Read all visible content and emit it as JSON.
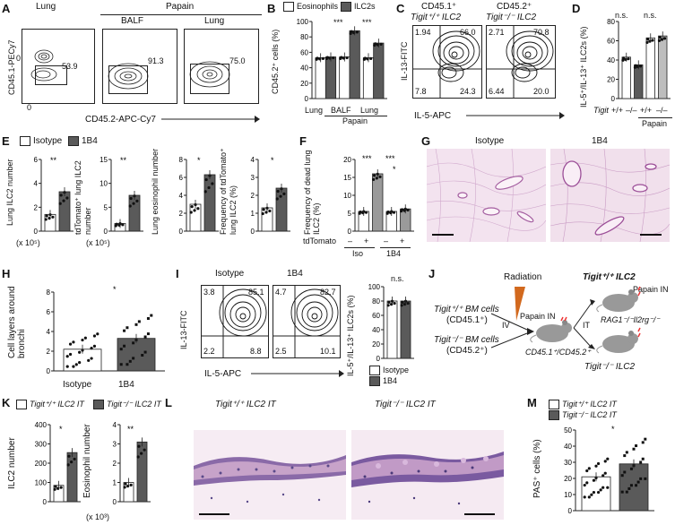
{
  "panels": {
    "A": {
      "letter": "A",
      "lung_label": "Lung",
      "papain_label": "Papain",
      "balf_label": "BALF",
      "lung2_label": "Lung",
      "ylabel": "CD45.1-PECy7",
      "xlabel": "CD45.2-APC-Cy7",
      "zero_y": "0",
      "zero_x": "0",
      "gates": [
        "53.9",
        "91.3",
        "75.0"
      ]
    },
    "B": {
      "letter": "B",
      "legend": [
        "Eosinophils",
        "ILC2s"
      ],
      "ylabel": "CD45.2⁺ cells (%)",
      "yticks": [
        "0",
        "20",
        "40",
        "60",
        "80",
        "100"
      ],
      "stars": [
        "***",
        "***"
      ],
      "xcats": [
        "Lung",
        "BALF",
        "Lung"
      ],
      "papain": "Papain"
    },
    "C": {
      "letter": "C",
      "title1": "CD45.1⁺",
      "title1b": "Tigit⁺/⁺ ILC2",
      "title2": "CD45.2⁺",
      "title2b": "Tigit⁻/⁻ ILC2",
      "ylabel": "IL-13-FITC",
      "xlabel": "IL-5-APC",
      "q1": [
        "1.94",
        "66.0",
        "7.8",
        "24.3"
      ],
      "q2": [
        "2.71",
        "70.8",
        "6.44",
        "20.0"
      ]
    },
    "D": {
      "letter": "D",
      "ylabel": "IL-5⁺/IL-13⁺ ILC2s (%)",
      "yticks": [
        "0",
        "20",
        "40",
        "60",
        "80"
      ],
      "ns": [
        "n.s.",
        "n.s."
      ],
      "tigit": "Tigit",
      "genos": [
        "+/+",
        "–/–",
        "+/+",
        "–/–"
      ],
      "papain": "Papain"
    },
    "E": {
      "letter": "E",
      "legend": [
        "Isotype",
        "1B4"
      ],
      "ylabels": [
        "Lung ILC2 number",
        "tdTomato⁺ lung ILC2 number",
        "Lung eosinophil number",
        "Frequency of tdTomato⁺ lung ILC2 (%)"
      ],
      "units": [
        "(x 10⁵)",
        "(x 10⁵)"
      ],
      "stars": [
        "**",
        "**",
        "*",
        "*"
      ],
      "yt1": [
        "0",
        "2",
        "4",
        "6"
      ],
      "yt2": [
        "0",
        "5",
        "10",
        "15"
      ],
      "yt3": [
        "0",
        "2",
        "4",
        "6",
        "8"
      ],
      "yt4": [
        "0",
        "1",
        "2",
        "3",
        "4"
      ]
    },
    "F": {
      "letter": "F",
      "ylabel": "Frequency of dead lung ILC2 (%)",
      "yticks": [
        "0",
        "5",
        "10",
        "15",
        "20"
      ],
      "stars": [
        "***",
        "***",
        "*"
      ],
      "tdtomato": "tdTomato",
      "signs": [
        "–",
        "+",
        "–",
        "+"
      ],
      "groups": [
        "Iso",
        "1B4"
      ]
    },
    "G": {
      "letter": "G",
      "titles": [
        "Isotype",
        "1B4"
      ]
    },
    "H": {
      "letter": "H",
      "ylabel": "Cell layers around bronchi",
      "yticks": [
        "0",
        "2",
        "4",
        "6",
        "8"
      ],
      "star": "*",
      "xcats": [
        "Isotype",
        "1B4"
      ]
    },
    "I": {
      "letter": "I",
      "titles": [
        "Isotype",
        "1B4"
      ],
      "ylabel": "IL-13-FITC",
      "xlabel": "IL-5-APC",
      "q1": [
        "3.8",
        "85.1",
        "2.2",
        "8.8"
      ],
      "q2": [
        "4.7",
        "82.7",
        "2.5",
        "10.1"
      ],
      "bar_ylabel": "IL-5⁺/IL-13⁺ ILC2s (%)",
      "bar_yticks": [
        "0",
        "20",
        "40",
        "60",
        "80",
        "100"
      ],
      "ns": "n.s.",
      "legend": [
        "Isotype",
        "1B4"
      ]
    },
    "J": {
      "letter": "J",
      "radiation": "Radiation",
      "bm1": "Tigit⁺/⁺ BM cells",
      "bm1b": "(CD45.1⁺)",
      "bm2": "Tigit⁻/⁻ BM cells",
      "bm2b": "(CD45.2⁺)",
      "iv": "IV",
      "papain_in": "Papain IN",
      "papain_in2": "Papain IN",
      "it": "IT",
      "host": "CD45.1⁺/CD45.2⁺",
      "out1": "Tigit⁺/⁺ ILC2",
      "out2": "Tigit⁻/⁻ ILC2",
      "rag": "RAG1⁻/⁻Il2rg⁻/⁻"
    },
    "K": {
      "letter": "K",
      "legend": [
        "Tigit⁺/⁺ ILC2 IT",
        "Tigit⁻/⁻ ILC2 IT"
      ],
      "ylabels": [
        "ILC2 number",
        "Eosinophil number"
      ],
      "yt1": [
        "0",
        "100",
        "200",
        "300",
        "400"
      ],
      "yt2": [
        "0",
        "1",
        "2",
        "3",
        "4"
      ],
      "unit": "(x 10³)",
      "stars": [
        "*",
        "**"
      ]
    },
    "L": {
      "letter": "L",
      "titles": [
        "Tigit⁺/⁺ ILC2 IT",
        "Tigit⁻/⁻ ILC2 IT"
      ]
    },
    "M": {
      "letter": "M",
      "legend": [
        "Tigit⁺/⁺ ILC2 IT",
        "Tigit⁻/⁻ ILC2 IT"
      ],
      "ylabel": "PAS⁺ cells (%)",
      "yticks": [
        "0",
        "10",
        "20",
        "30",
        "40",
        "50"
      ],
      "star": "*"
    }
  },
  "chart_data": [
    {
      "type": "bar",
      "panel": "B",
      "categories": [
        "Lung",
        "BALF",
        "Lung"
      ],
      "ylabel": "CD45.2⁺ cells (%)",
      "ylim": [
        0,
        100
      ],
      "series": [
        {
          "name": "Eosinophils",
          "values": [
            53,
            54,
            53
          ]
        },
        {
          "name": "ILC2s",
          "values": [
            54,
            88,
            72
          ]
        }
      ]
    },
    {
      "type": "bar",
      "panel": "D",
      "categories": [
        "+/+",
        "–/–",
        "+/+",
        "–/–"
      ],
      "ylabel": "IL-5⁺/IL-13⁺ ILC2s (%)",
      "ylim": [
        0,
        80
      ],
      "values": [
        43,
        35,
        63,
        65
      ]
    },
    {
      "type": "bar",
      "panel": "E1",
      "categories": [
        "Isotype",
        "1B4"
      ],
      "ylabel": "Lung ILC2 number",
      "ylim": [
        0,
        6
      ],
      "values": [
        1.4,
        3.3
      ]
    },
    {
      "type": "bar",
      "panel": "E2",
      "categories": [
        "Isotype",
        "1B4"
      ],
      "ylabel": "tdTomato⁺ lung ILC2 number",
      "ylim": [
        0,
        15
      ],
      "values": [
        1.6,
        7.5
      ]
    },
    {
      "type": "bar",
      "panel": "E3",
      "categories": [
        "Isotype",
        "1B4"
      ],
      "ylabel": "Lung eosinophil number",
      "ylim": [
        0,
        8
      ],
      "values": [
        3.0,
        6.3
      ]
    },
    {
      "type": "bar",
      "panel": "E4",
      "categories": [
        "Isotype",
        "1B4"
      ],
      "ylabel": "Frequency of tdTomato⁺ lung ILC2 (%)",
      "ylim": [
        0,
        4
      ],
      "values": [
        1.3,
        2.4
      ]
    },
    {
      "type": "bar",
      "panel": "F",
      "categories": [
        "Iso –",
        "Iso +",
        "1B4 –",
        "1B4 +"
      ],
      "ylabel": "Frequency of dead lung ILC2 (%)",
      "ylim": [
        0,
        20
      ],
      "values": [
        5.5,
        16,
        5.5,
        6.2
      ]
    },
    {
      "type": "bar",
      "panel": "H",
      "categories": [
        "Isotype",
        "1B4"
      ],
      "ylabel": "Cell layers around bronchi",
      "ylim": [
        0,
        8
      ],
      "values": [
        2.2,
        3.3
      ]
    },
    {
      "type": "bar",
      "panel": "I",
      "categories": [
        "Isotype",
        "1B4"
      ],
      "ylabel": "IL-5⁺/IL-13⁺ ILC2s (%)",
      "ylim": [
        0,
        100
      ],
      "values": [
        80,
        80
      ]
    },
    {
      "type": "bar",
      "panel": "K1",
      "categories": [
        "Tigit⁺/⁺ ILC2 IT",
        "Tigit⁻/⁻ ILC2 IT"
      ],
      "ylabel": "ILC2 number",
      "ylim": [
        0,
        400
      ],
      "values": [
        85,
        255
      ]
    },
    {
      "type": "bar",
      "panel": "K2",
      "categories": [
        "Tigit⁺/⁺ ILC2 IT",
        "Tigit⁻/⁻ ILC2 IT"
      ],
      "ylabel": "Eosinophil number",
      "ylim": [
        0,
        4
      ],
      "values": [
        1.0,
        3.1
      ]
    },
    {
      "type": "bar",
      "panel": "M",
      "categories": [
        "Tigit⁺/⁺ ILC2 IT",
        "Tigit⁻/⁻ ILC2 IT"
      ],
      "ylabel": "PAS⁺ cells (%)",
      "ylim": [
        0,
        50
      ],
      "values": [
        21,
        29
      ]
    }
  ]
}
